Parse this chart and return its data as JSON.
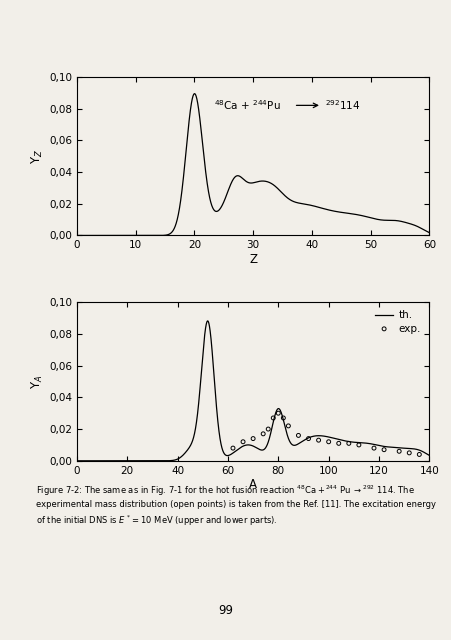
{
  "top_plot": {
    "ylabel": "Y$_Z$",
    "xlabel": "Z",
    "xlim": [
      0,
      60
    ],
    "ylim": [
      0.0,
      0.1
    ],
    "yticks": [
      0.0,
      0.02,
      0.04,
      0.06,
      0.08,
      0.1
    ],
    "xticks": [
      0,
      10,
      20,
      30,
      40,
      50,
      60
    ]
  },
  "bottom_plot": {
    "ylabel": "Y$_A$",
    "xlabel": "A",
    "xlim": [
      0,
      140
    ],
    "ylim": [
      0.0,
      0.1
    ],
    "yticks": [
      0.0,
      0.02,
      0.04,
      0.06,
      0.08,
      0.1
    ],
    "xticks": [
      0,
      20,
      40,
      60,
      80,
      100,
      120,
      140
    ],
    "legend_th": "th.",
    "legend_exp": "exp."
  },
  "page_number": "99",
  "bg_color": "#f2efe9"
}
